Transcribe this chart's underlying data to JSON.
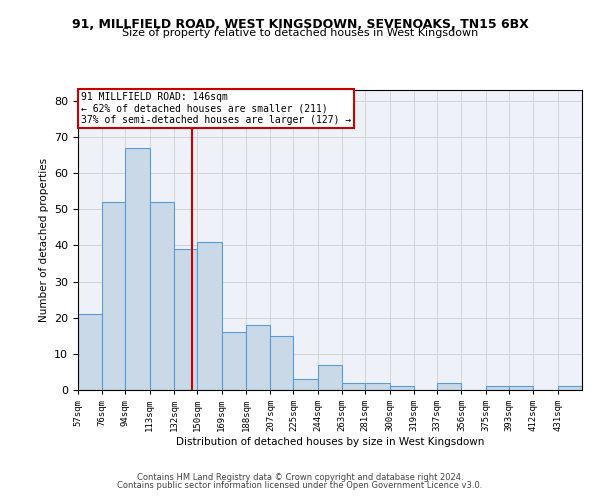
{
  "title1": "91, MILLFIELD ROAD, WEST KINGSDOWN, SEVENOAKS, TN15 6BX",
  "title2": "Size of property relative to detached houses in West Kingsdown",
  "xlabel": "Distribution of detached houses by size in West Kingsdown",
  "ylabel": "Number of detached properties",
  "annotation_line1": "91 MILLFIELD ROAD: 146sqm",
  "annotation_line2": "← 62% of detached houses are smaller (211)",
  "annotation_line3": "37% of semi-detached houses are larger (127) →",
  "property_size": 146,
  "bar_color": "#c9d9e8",
  "bar_edge_color": "#5b9bd5",
  "vline_color": "#cc0000",
  "annotation_box_color": "#cc0000",
  "categories": [
    "57sqm",
    "76sqm",
    "94sqm",
    "113sqm",
    "132sqm",
    "150sqm",
    "169sqm",
    "188sqm",
    "207sqm",
    "225sqm",
    "244sqm",
    "263sqm",
    "281sqm",
    "300sqm",
    "319sqm",
    "337sqm",
    "356sqm",
    "375sqm",
    "393sqm",
    "412sqm",
    "431sqm"
  ],
  "bin_edges": [
    57,
    76,
    94,
    113,
    132,
    150,
    169,
    188,
    207,
    225,
    244,
    263,
    281,
    300,
    319,
    337,
    356,
    375,
    393,
    412,
    431,
    450
  ],
  "values": [
    21,
    52,
    67,
    52,
    39,
    41,
    16,
    18,
    15,
    3,
    7,
    2,
    2,
    1,
    0,
    2,
    0,
    1,
    1,
    0,
    1
  ],
  "ylim": [
    0,
    83
  ],
  "yticks": [
    0,
    10,
    20,
    30,
    40,
    50,
    60,
    70,
    80
  ],
  "footer1": "Contains HM Land Registry data © Crown copyright and database right 2024.",
  "footer2": "Contains public sector information licensed under the Open Government Licence v3.0."
}
